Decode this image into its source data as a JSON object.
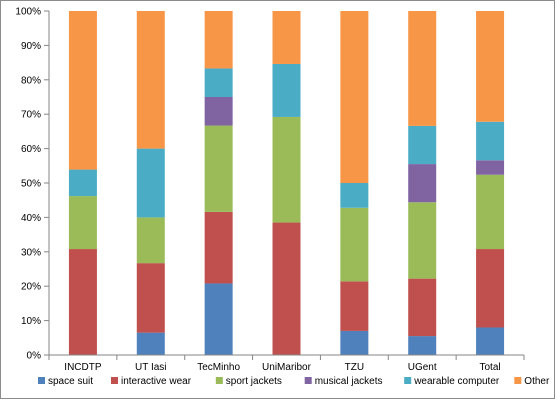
{
  "chart_data": {
    "type": "bar",
    "stacked": true,
    "percent": true,
    "categories": [
      "INCDTP",
      "UT Iasi",
      "TecMinho",
      "UniMaribor",
      "TZU",
      "UGent",
      "Total"
    ],
    "ylim": [
      0,
      100
    ],
    "yticks": [
      "0%",
      "10%",
      "20%",
      "30%",
      "40%",
      "50%",
      "60%",
      "70%",
      "80%",
      "90%",
      "100%"
    ],
    "grid": false,
    "legend_position": "bottom",
    "series": [
      {
        "name": "space suit",
        "color": "#4F81BD",
        "values": [
          0,
          6.5,
          20.8,
          0,
          7,
          5.5,
          8
        ]
      },
      {
        "name": "interactive wear",
        "color": "#C0504D",
        "values": [
          30.8,
          20.2,
          20.8,
          38.5,
          14.4,
          16.7,
          22.8
        ]
      },
      {
        "name": "sport jackets",
        "color": "#9BBB59",
        "values": [
          15.4,
          13.3,
          25.1,
          30.7,
          21.4,
          22.2,
          21.6
        ]
      },
      {
        "name": "musical jackets",
        "color": "#8064A2",
        "values": [
          0,
          0,
          8.3,
          0,
          0,
          11.1,
          4.2
        ]
      },
      {
        "name": "wearable computer",
        "color": "#4BACC6",
        "values": [
          7.7,
          20,
          8.3,
          15.4,
          7.2,
          11.1,
          11.2
        ]
      },
      {
        "name": "Other",
        "color": "#F79646",
        "values": [
          46.1,
          40,
          16.7,
          15.4,
          50,
          33.4,
          32.2
        ]
      }
    ]
  }
}
